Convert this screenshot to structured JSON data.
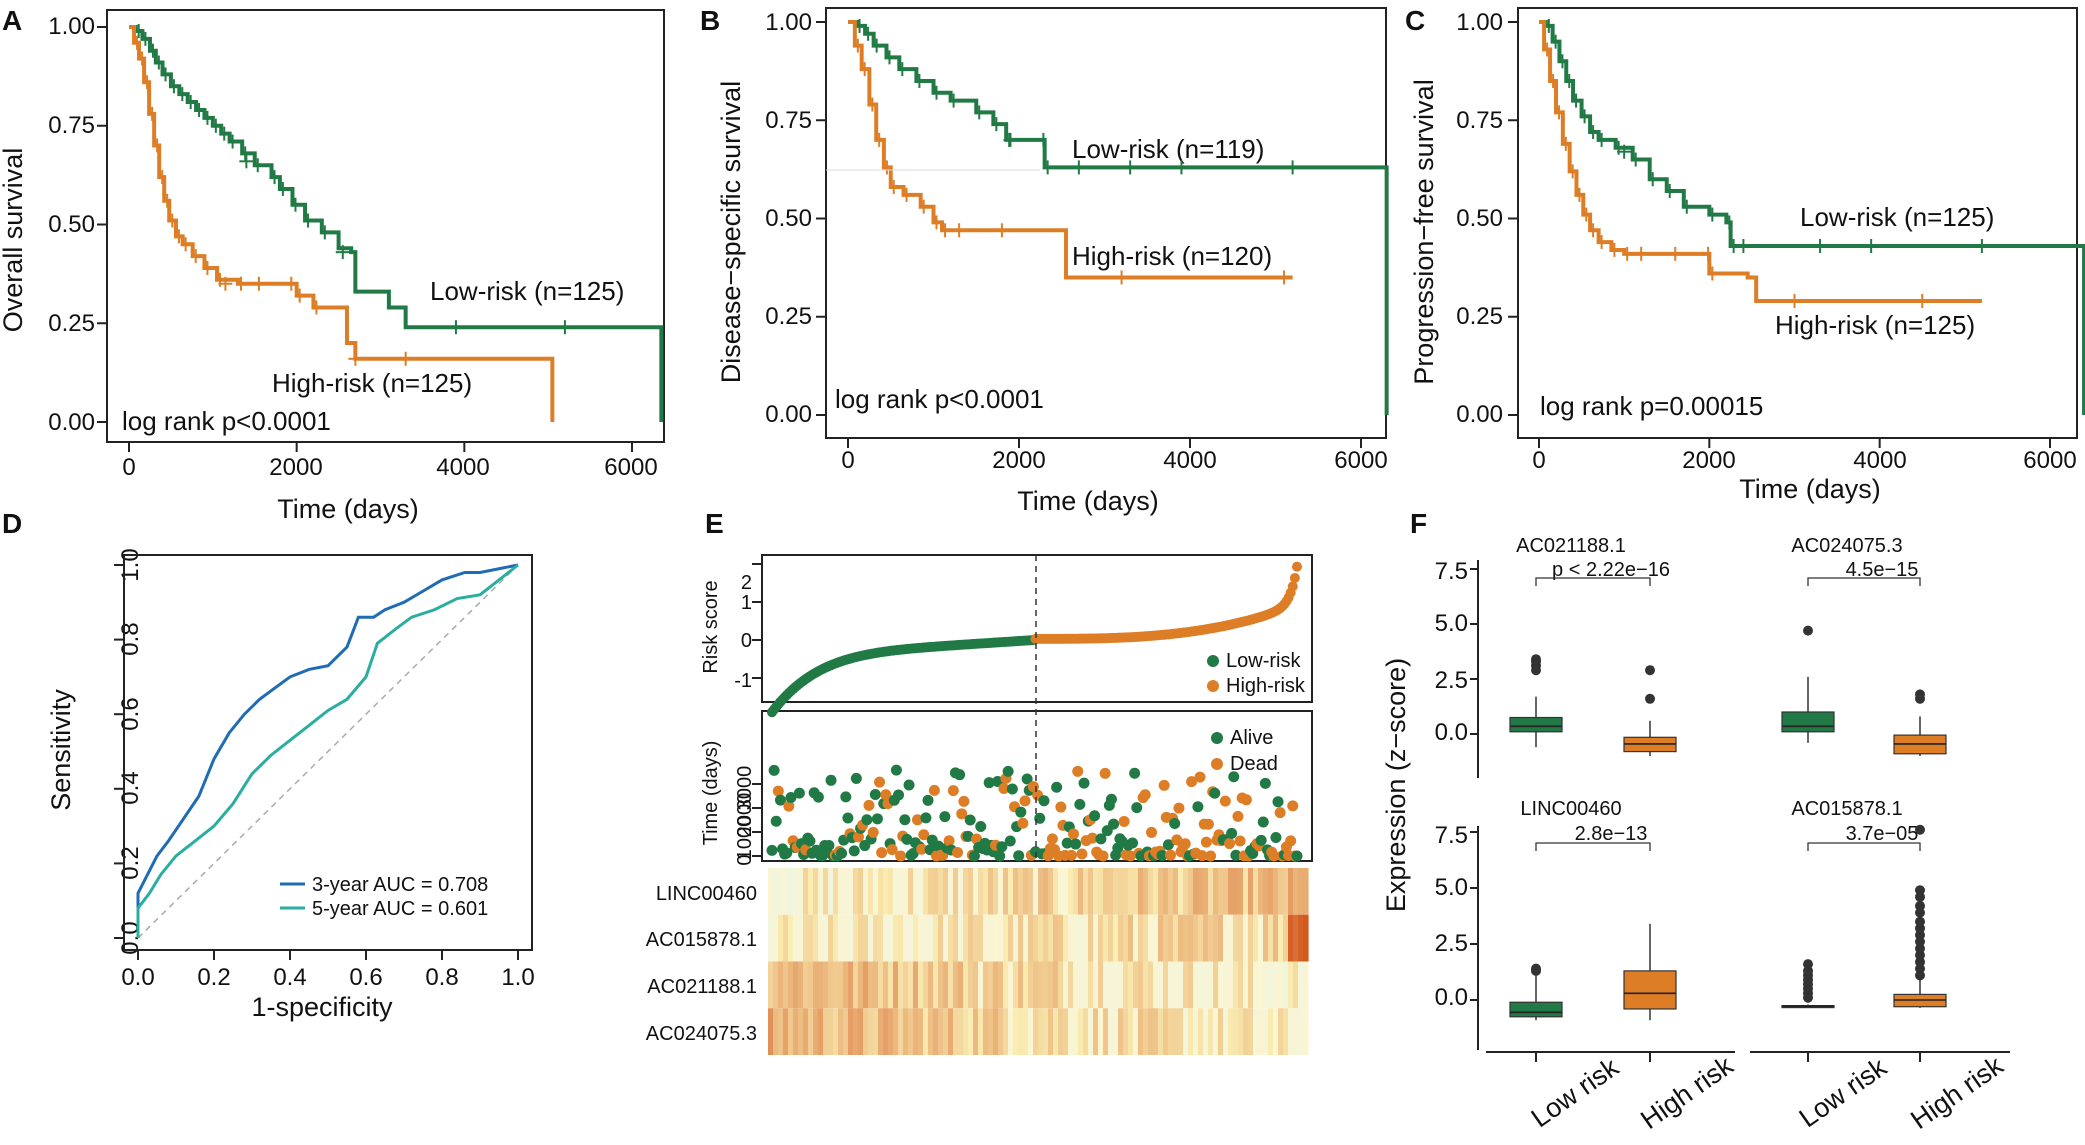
{
  "colors": {
    "low": "#217a45",
    "high": "#dd7e27",
    "auc3": "#1f6bb4",
    "auc5": "#29aea0"
  },
  "chart_data": [
    {
      "panel": "A",
      "type": "line",
      "xlabel": "Time (days)",
      "ylabel": "Overall survival",
      "xlim": [
        0,
        6500
      ],
      "ylim": [
        0,
        1
      ],
      "xticks": [
        0,
        2000,
        4000,
        6000
      ],
      "yticks": [
        "0.00",
        "0.25",
        "0.50",
        "0.75",
        "1.00"
      ],
      "series": [
        {
          "name": "Low-risk (n=125)",
          "label": "Low-risk (n=125)",
          "group": "low",
          "points": [
            [
              0,
              1.0
            ],
            [
              80,
              0.99
            ],
            [
              160,
              0.97
            ],
            [
              250,
              0.94
            ],
            [
              320,
              0.91
            ],
            [
              400,
              0.88
            ],
            [
              500,
              0.85
            ],
            [
              600,
              0.83
            ],
            [
              700,
              0.81
            ],
            [
              800,
              0.79
            ],
            [
              900,
              0.77
            ],
            [
              1000,
              0.75
            ],
            [
              1100,
              0.73
            ],
            [
              1200,
              0.71
            ],
            [
              1350,
              0.68
            ],
            [
              1500,
              0.65
            ],
            [
              1700,
              0.62
            ],
            [
              1800,
              0.59
            ],
            [
              1950,
              0.55
            ],
            [
              2100,
              0.51
            ],
            [
              2300,
              0.48
            ],
            [
              2500,
              0.44
            ],
            [
              2650,
              0.43
            ],
            [
              2700,
              0.33
            ],
            [
              3100,
              0.29
            ],
            [
              3300,
              0.24
            ],
            [
              6350,
              0.24
            ],
            [
              6350,
              0.0
            ]
          ],
          "censors": [
            [
              1400,
              0.66
            ],
            [
              2550,
              0.43
            ],
            [
              3900,
              0.24
            ],
            [
              5200,
              0.24
            ]
          ]
        },
        {
          "name": "High-risk (n=125)",
          "label": "High-risk (n=125)",
          "group": "high",
          "points": [
            [
              0,
              1.0
            ],
            [
              60,
              0.96
            ],
            [
              120,
              0.92
            ],
            [
              180,
              0.86
            ],
            [
              240,
              0.78
            ],
            [
              300,
              0.7
            ],
            [
              360,
              0.62
            ],
            [
              420,
              0.56
            ],
            [
              480,
              0.51
            ],
            [
              560,
              0.47
            ],
            [
              640,
              0.45
            ],
            [
              760,
              0.42
            ],
            [
              900,
              0.39
            ],
            [
              1050,
              0.36
            ],
            [
              1300,
              0.35
            ],
            [
              1900,
              0.35
            ],
            [
              2000,
              0.32
            ],
            [
              2200,
              0.29
            ],
            [
              2600,
              0.2
            ],
            [
              2700,
              0.16
            ],
            [
              5050,
              0.16
            ],
            [
              5050,
              0.0
            ]
          ],
          "censors": [
            [
              1150,
              0.35
            ],
            [
              1550,
              0.35
            ],
            [
              2700,
              0.16
            ],
            [
              3300,
              0.16
            ]
          ]
        }
      ],
      "pvalue": "log rank p<0.0001"
    },
    {
      "panel": "B",
      "type": "line",
      "xlabel": "Time (days)",
      "ylabel": "Disease−specific survival",
      "xlim": [
        0,
        6500
      ],
      "ylim": [
        0,
        1
      ],
      "xticks": [
        0,
        2000,
        4000,
        6000
      ],
      "yticks": [
        "0.00",
        "0.25",
        "0.50",
        "0.75",
        "1.00"
      ],
      "series": [
        {
          "name": "Low-risk (n=119)",
          "label": "Low-risk (n=119)",
          "group": "low",
          "points": [
            [
              0,
              1.0
            ],
            [
              100,
              0.99
            ],
            [
              200,
              0.97
            ],
            [
              300,
              0.94
            ],
            [
              450,
              0.91
            ],
            [
              600,
              0.88
            ],
            [
              800,
              0.85
            ],
            [
              1000,
              0.82
            ],
            [
              1200,
              0.8
            ],
            [
              1500,
              0.77
            ],
            [
              1700,
              0.74
            ],
            [
              1850,
              0.7
            ],
            [
              2250,
              0.7
            ],
            [
              2300,
              0.63
            ],
            [
              6300,
              0.63
            ],
            [
              6300,
              0.0
            ]
          ],
          "censors": [
            [
              1900,
              0.7
            ],
            [
              2700,
              0.63
            ],
            [
              3300,
              0.63
            ],
            [
              3900,
              0.63
            ],
            [
              5200,
              0.63
            ]
          ]
        },
        {
          "name": "High-risk (n=120)",
          "label": "High-risk (n=120)",
          "group": "high",
          "points": [
            [
              0,
              1.0
            ],
            [
              80,
              0.94
            ],
            [
              160,
              0.88
            ],
            [
              250,
              0.79
            ],
            [
              330,
              0.7
            ],
            [
              420,
              0.63
            ],
            [
              500,
              0.58
            ],
            [
              650,
              0.56
            ],
            [
              850,
              0.53
            ],
            [
              1000,
              0.49
            ],
            [
              1100,
              0.47
            ],
            [
              2500,
              0.47
            ],
            [
              2550,
              0.35
            ],
            [
              5200,
              0.35
            ]
          ],
          "censors": [
            [
              1300,
              0.47
            ],
            [
              1800,
              0.47
            ],
            [
              3200,
              0.35
            ],
            [
              5100,
              0.35
            ]
          ]
        }
      ],
      "pvalue": "log rank p<0.0001"
    },
    {
      "panel": "C",
      "type": "line",
      "xlabel": "Time (days)",
      "ylabel": "Progression−free survival",
      "xlim": [
        0,
        6500
      ],
      "ylim": [
        0,
        1
      ],
      "xticks": [
        0,
        2000,
        4000,
        6000
      ],
      "yticks": [
        "0.00",
        "0.25",
        "0.50",
        "0.75",
        "1.00"
      ],
      "series": [
        {
          "name": "Low-risk (n=125)",
          "label": "Low-risk (n=125)",
          "group": "low",
          "points": [
            [
              0,
              1.0
            ],
            [
              80,
              0.99
            ],
            [
              160,
              0.95
            ],
            [
              240,
              0.9
            ],
            [
              320,
              0.85
            ],
            [
              400,
              0.8
            ],
            [
              500,
              0.76
            ],
            [
              600,
              0.72
            ],
            [
              700,
              0.7
            ],
            [
              900,
              0.68
            ],
            [
              1100,
              0.65
            ],
            [
              1300,
              0.6
            ],
            [
              1500,
              0.57
            ],
            [
              1700,
              0.53
            ],
            [
              2000,
              0.51
            ],
            [
              2200,
              0.49
            ],
            [
              2250,
              0.43
            ],
            [
              6400,
              0.43
            ],
            [
              6400,
              0.0
            ]
          ],
          "censors": [
            [
              1000,
              0.67
            ],
            [
              2400,
              0.43
            ],
            [
              3300,
              0.43
            ],
            [
              3900,
              0.43
            ],
            [
              5200,
              0.43
            ]
          ]
        },
        {
          "name": "High-risk (n=125)",
          "label": "High-risk (n=125)",
          "group": "high",
          "points": [
            [
              0,
              1.0
            ],
            [
              60,
              0.93
            ],
            [
              130,
              0.85
            ],
            [
              200,
              0.77
            ],
            [
              280,
              0.69
            ],
            [
              360,
              0.62
            ],
            [
              440,
              0.56
            ],
            [
              520,
              0.51
            ],
            [
              600,
              0.47
            ],
            [
              700,
              0.44
            ],
            [
              850,
              0.42
            ],
            [
              1000,
              0.41
            ],
            [
              1950,
              0.41
            ],
            [
              2000,
              0.36
            ],
            [
              2450,
              0.35
            ],
            [
              2550,
              0.29
            ],
            [
              5200,
              0.29
            ]
          ],
          "censors": [
            [
              1200,
              0.41
            ],
            [
              1600,
              0.41
            ],
            [
              3000,
              0.29
            ],
            [
              4500,
              0.29
            ]
          ]
        }
      ],
      "pvalue": "log rank p=0.00015"
    },
    {
      "panel": "D",
      "type": "line",
      "xlabel": "1-specificity",
      "ylabel": "Sensitivity",
      "xlim": [
        0,
        1
      ],
      "ylim": [
        0,
        1
      ],
      "xticks": [
        "0.0",
        "0.2",
        "0.4",
        "0.6",
        "0.8",
        "1.0"
      ],
      "yticks": [
        "0.0",
        "0.2",
        "0.4",
        "0.6",
        "0.8",
        "1.0"
      ],
      "series": [
        {
          "name": "3-year AUC = 0.708",
          "group": "auc3",
          "points": [
            [
              0,
              0
            ],
            [
              0,
              0.12
            ],
            [
              0.02,
              0.16
            ],
            [
              0.05,
              0.22
            ],
            [
              0.08,
              0.26
            ],
            [
              0.12,
              0.32
            ],
            [
              0.16,
              0.38
            ],
            [
              0.2,
              0.48
            ],
            [
              0.24,
              0.55
            ],
            [
              0.28,
              0.6
            ],
            [
              0.32,
              0.64
            ],
            [
              0.36,
              0.67
            ],
            [
              0.4,
              0.7
            ],
            [
              0.45,
              0.72
            ],
            [
              0.5,
              0.73
            ],
            [
              0.55,
              0.78
            ],
            [
              0.58,
              0.86
            ],
            [
              0.62,
              0.86
            ],
            [
              0.65,
              0.88
            ],
            [
              0.7,
              0.9
            ],
            [
              0.75,
              0.93
            ],
            [
              0.8,
              0.96
            ],
            [
              0.86,
              0.98
            ],
            [
              0.9,
              0.98
            ],
            [
              0.95,
              0.99
            ],
            [
              1,
              1
            ]
          ]
        },
        {
          "name": "5-year AUC = 0.601",
          "group": "auc5",
          "points": [
            [
              0,
              0
            ],
            [
              0,
              0.08
            ],
            [
              0.03,
              0.12
            ],
            [
              0.06,
              0.17
            ],
            [
              0.1,
              0.22
            ],
            [
              0.15,
              0.26
            ],
            [
              0.2,
              0.3
            ],
            [
              0.25,
              0.36
            ],
            [
              0.3,
              0.44
            ],
            [
              0.35,
              0.49
            ],
            [
              0.4,
              0.53
            ],
            [
              0.45,
              0.57
            ],
            [
              0.5,
              0.61
            ],
            [
              0.55,
              0.64
            ],
            [
              0.6,
              0.7
            ],
            [
              0.63,
              0.79
            ],
            [
              0.68,
              0.83
            ],
            [
              0.72,
              0.86
            ],
            [
              0.78,
              0.88
            ],
            [
              0.84,
              0.91
            ],
            [
              0.9,
              0.92
            ],
            [
              0.95,
              0.96
            ],
            [
              1,
              1
            ]
          ]
        }
      ],
      "legend": "bottom-right"
    },
    {
      "panel": "E",
      "type": "scatter",
      "risk_ylabel": "Risk score",
      "risk_yticks": [
        "-1",
        "0",
        "1",
        "2"
      ],
      "risk_legend": [
        "Low-risk",
        "High-risk"
      ],
      "time_ylabel": "Time (days)",
      "time_yticks": [
        "0",
        "1000",
        "2000",
        "3000"
      ],
      "time_legend": [
        "Alive",
        "Dead"
      ],
      "heatmap_rows": [
        "LINC00460",
        "AC015878.1",
        "AC021188.1",
        "AC024075.3"
      ],
      "n_samples": 250
    },
    {
      "panel": "F",
      "type": "box",
      "ylabel": "Expression (z−score)",
      "yticks": [
        "0.0",
        "2.5",
        "5.0",
        "7.5"
      ],
      "categories": [
        "Low risk",
        "High risk"
      ],
      "genes": [
        {
          "name": "AC021188.1",
          "p": "p < 2.22e−16",
          "low": {
            "q1": 0.1,
            "median": 0.35,
            "q3": 0.75,
            "wlo": -0.6,
            "whi": 1.7,
            "out": [
              2.9,
              3.1,
              3.3,
              3.4
            ]
          },
          "high": {
            "q1": -0.8,
            "median": -0.45,
            "q3": -0.15,
            "wlo": -1.0,
            "whi": 0.6,
            "out": [
              1.6,
              2.9
            ]
          }
        },
        {
          "name": "AC024075.3",
          "p": "4.5e−15",
          "low": {
            "q1": 0.1,
            "median": 0.35,
            "q3": 1.0,
            "wlo": -0.4,
            "whi": 2.6,
            "out": [
              4.7
            ]
          },
          "high": {
            "q1": -0.9,
            "median": -0.45,
            "q3": -0.05,
            "wlo": -1.0,
            "whi": 0.8,
            "out": [
              1.6,
              1.8
            ]
          }
        },
        {
          "name": "LINC00460",
          "p": "2.8e−13",
          "low": {
            "q1": -0.75,
            "median": -0.55,
            "q3": -0.1,
            "wlo": -0.9,
            "whi": 1.2,
            "out": [
              1.3,
              1.4
            ]
          },
          "high": {
            "q1": -0.4,
            "median": 0.3,
            "q3": 1.3,
            "wlo": -0.9,
            "whi": 3.4,
            "out": []
          }
        },
        {
          "name": "AC015878.1",
          "p": "3.7e−05",
          "low": {
            "q1": -0.32,
            "median": -0.28,
            "q3": -0.25,
            "wlo": -0.35,
            "whi": -0.2,
            "out": [
              0.1,
              0.3,
              0.5,
              0.7,
              0.9,
              1.1,
              1.3,
              1.6
            ]
          },
          "high": {
            "q1": -0.3,
            "median": 0.0,
            "q3": 0.25,
            "wlo": -0.35,
            "whi": 0.9,
            "out": [
              1.1,
              1.4,
              1.7,
              2.0,
              2.3,
              2.6,
              2.9,
              3.2,
              3.5,
              3.9,
              4.2,
              4.6,
              4.9,
              7.6
            ]
          }
        }
      ]
    }
  ]
}
